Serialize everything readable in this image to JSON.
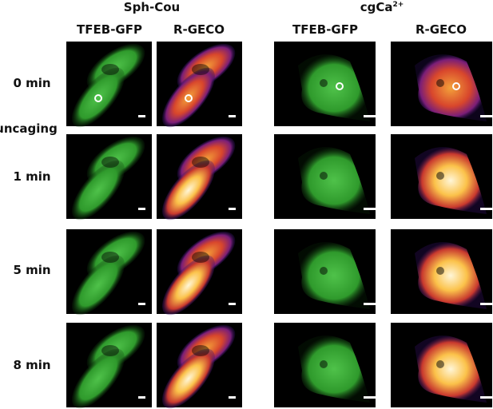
{
  "groups": [
    {
      "title": "Sph-Cou",
      "columns": [
        "TFEB-GFP",
        "R-GECO"
      ]
    },
    {
      "title": "cgCa",
      "title_sup": "2+",
      "columns": [
        "TFEB-GFP",
        "R-GECO"
      ]
    }
  ],
  "rows": [
    "0 min",
    "1 min",
    "5 min",
    "8 min"
  ],
  "event": "uncaging"
}
